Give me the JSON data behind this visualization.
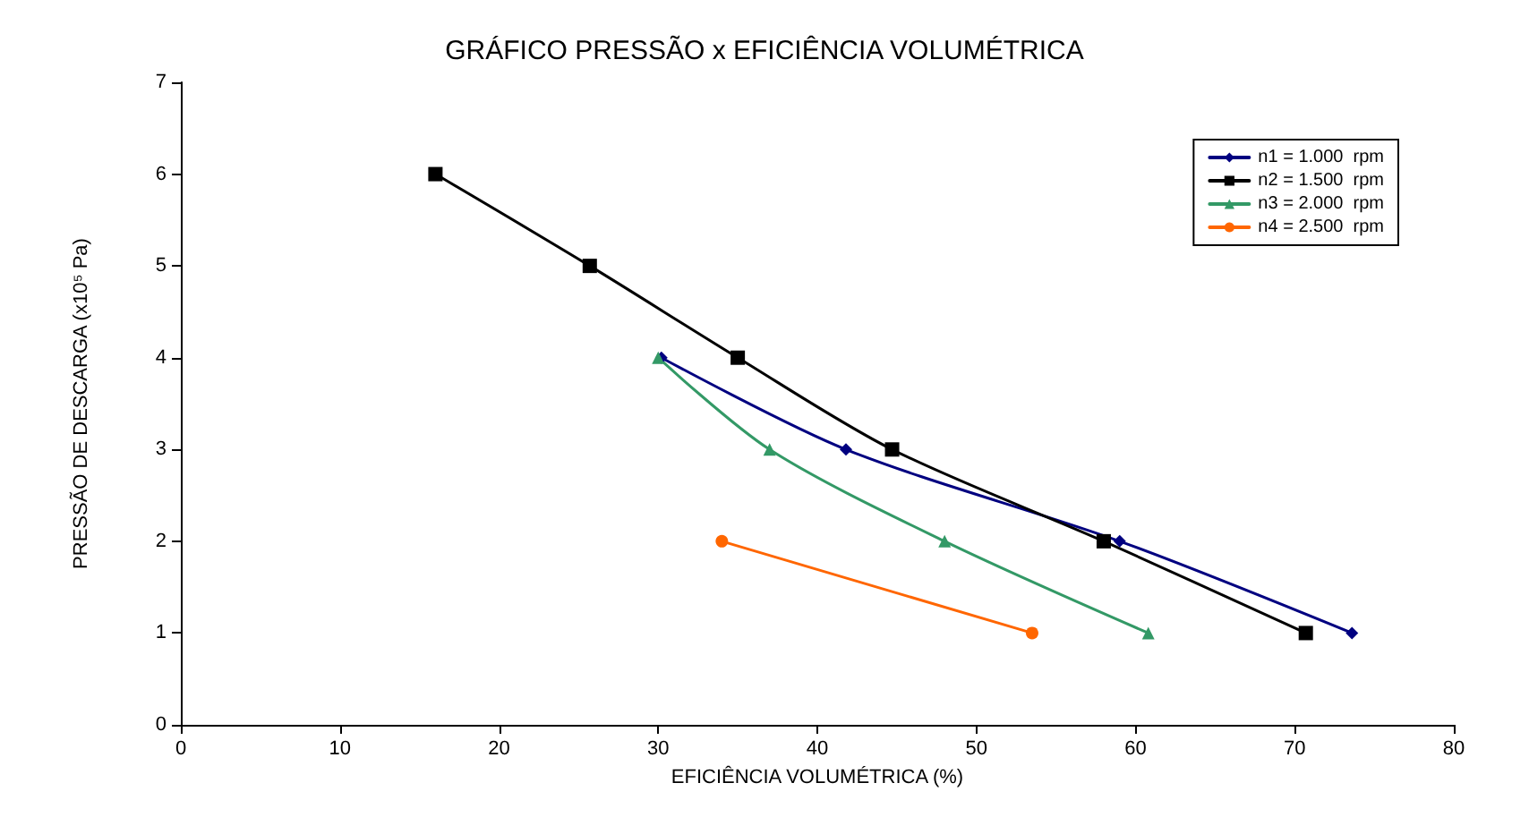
{
  "chart_data": {
    "type": "line",
    "title": "GRÁFICO PRESSÃO x EFICIÊNCIA VOLUMÉTRICA",
    "xlabel": "EFICIÊNCIA VOLUMÉTRICA (%)",
    "ylabel": "PRESSÃO DE DESCARGA (x10⁵ Pa)",
    "xlim": [
      0,
      80
    ],
    "xticks": [
      0,
      10,
      20,
      30,
      40,
      50,
      60,
      70,
      80
    ],
    "ylim": [
      0,
      7
    ],
    "yticks": [
      0,
      1,
      2,
      3,
      4,
      5,
      6,
      7
    ],
    "grid": false,
    "legend": "top right",
    "series": [
      {
        "name": "n1 = 1.000  rpm",
        "color": "#000080",
        "marker": "diamond",
        "x": [
          30.2,
          41.8,
          59,
          73.6
        ],
        "values": [
          4,
          3,
          2,
          1
        ]
      },
      {
        "name": "n2 = 1.500  rpm",
        "color": "#000000",
        "marker": "square",
        "x": [
          16,
          25.7,
          35,
          44.7,
          58,
          70.7
        ],
        "values": [
          6,
          5,
          4,
          3,
          2,
          1
        ]
      },
      {
        "name": "n3 = 2.000  rpm",
        "color": "#339966",
        "marker": "triangle",
        "x": [
          30,
          37,
          48,
          60.8
        ],
        "values": [
          4,
          3,
          2,
          1
        ]
      },
      {
        "name": "n4 = 2.500  rpm",
        "color": "#ff6600",
        "marker": "circle",
        "x": [
          34,
          53.5
        ],
        "values": [
          2,
          1
        ]
      }
    ]
  }
}
